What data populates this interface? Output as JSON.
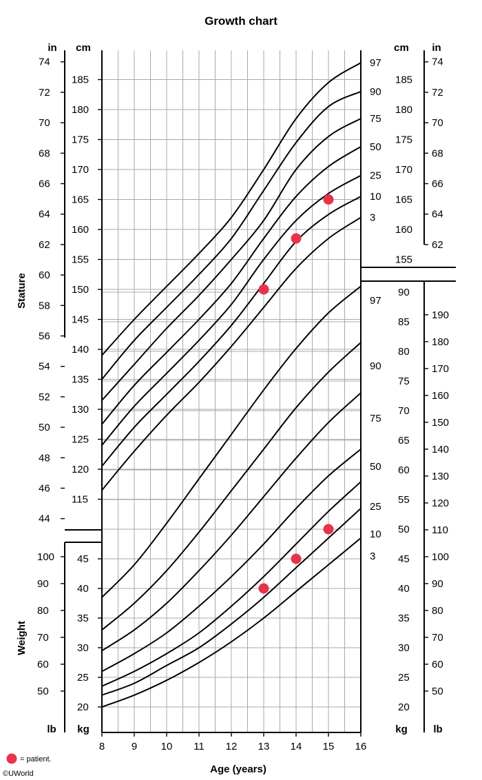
{
  "chart_data": {
    "type": "line",
    "title": "Growth chart",
    "xlabel": "Age (years)",
    "x_ticks": [
      8,
      9,
      10,
      11,
      12,
      13,
      14,
      15,
      16
    ],
    "xlim": [
      8,
      16
    ],
    "stature": {
      "axis_label": "Stature",
      "unit_in": "in",
      "unit_cm": "cm",
      "ylim_cm": [
        112,
        189
      ],
      "left_cm_ticks": [
        115,
        120,
        125,
        130,
        135,
        140,
        145,
        150,
        155,
        160,
        165,
        170,
        175,
        180,
        185
      ],
      "right_cm_ticks": [
        155,
        160,
        165,
        170,
        175,
        180,
        185
      ],
      "left_in_ticks": [
        44,
        46,
        48,
        50,
        52,
        54,
        56,
        58,
        60,
        62,
        64,
        66,
        68,
        70,
        72,
        74
      ],
      "right_in_ticks": [
        62,
        64,
        66,
        68,
        70,
        72,
        74
      ],
      "series": [
        {
          "name": "97",
          "x": [
            8,
            9,
            10,
            11,
            12,
            13,
            14,
            15,
            16
          ],
          "y": [
            139,
            145,
            150.5,
            156,
            162,
            170,
            178.5,
            184.5,
            187.8
          ]
        },
        {
          "name": "90",
          "x": [
            8,
            9,
            10,
            11,
            12,
            13,
            14,
            15,
            16
          ],
          "y": [
            135,
            141.5,
            147,
            152.5,
            158.5,
            166.5,
            174.5,
            180.5,
            183
          ]
        },
        {
          "name": "75",
          "x": [
            8,
            9,
            10,
            11,
            12,
            13,
            14,
            15,
            16
          ],
          "y": [
            131.5,
            137.5,
            143.5,
            149,
            155,
            161.5,
            170,
            175.5,
            178.5
          ]
        },
        {
          "name": "50",
          "x": [
            8,
            9,
            10,
            11,
            12,
            13,
            14,
            15,
            16
          ],
          "y": [
            127.5,
            134,
            139.5,
            145,
            151,
            158.5,
            165.5,
            170.5,
            173.8
          ]
        },
        {
          "name": "25",
          "x": [
            8,
            9,
            10,
            11,
            12,
            13,
            14,
            15,
            16
          ],
          "y": [
            124,
            130.5,
            136,
            141.5,
            147.5,
            155,
            161.5,
            166,
            169
          ]
        },
        {
          "name": "10",
          "x": [
            8,
            9,
            10,
            11,
            12,
            13,
            14,
            15,
            16
          ],
          "y": [
            120.5,
            127,
            132.5,
            138,
            144,
            151,
            158,
            162.5,
            165.5
          ]
        },
        {
          "name": "3",
          "x": [
            8,
            9,
            10,
            11,
            12,
            13,
            14,
            15,
            16
          ],
          "y": [
            116.5,
            123,
            129,
            134.5,
            140.5,
            147,
            153.5,
            158.5,
            162
          ]
        }
      ],
      "patient": {
        "x": [
          13,
          14,
          15
        ],
        "y": [
          150,
          158.5,
          165
        ]
      }
    },
    "weight": {
      "axis_label": "Weight",
      "unit_lb": "lb",
      "unit_kg": "kg",
      "ylim_kg": [
        18.5,
        93
      ],
      "left_kg_ticks": [
        20,
        25,
        30,
        35,
        40,
        45
      ],
      "right_kg_ticks": [
        20,
        25,
        30,
        35,
        40,
        45,
        50,
        55,
        60,
        65,
        70,
        75,
        80,
        85,
        90
      ],
      "left_lb_ticks": [
        50,
        60,
        70,
        80,
        90,
        100
      ],
      "right_lb_ticks": [
        50,
        60,
        70,
        80,
        90,
        100,
        110,
        120,
        130,
        140,
        150,
        160,
        170,
        180,
        190
      ],
      "series": [
        {
          "name": "97",
          "x": [
            8,
            9,
            10,
            11,
            12,
            13,
            14,
            15,
            16
          ],
          "y": [
            38.5,
            44,
            51,
            58.5,
            66,
            73.5,
            80.5,
            86.5,
            91
          ]
        },
        {
          "name": "90",
          "x": [
            8,
            9,
            10,
            11,
            12,
            13,
            14,
            15,
            16
          ],
          "y": [
            33,
            37.5,
            43,
            49.5,
            56.5,
            63.5,
            70.5,
            76.5,
            81.5
          ]
        },
        {
          "name": "75",
          "x": [
            8,
            9,
            10,
            11,
            12,
            13,
            14,
            15,
            16
          ],
          "y": [
            29.5,
            33,
            37.5,
            43,
            49,
            55.5,
            62,
            68,
            73
          ]
        },
        {
          "name": "50",
          "x": [
            8,
            9,
            10,
            11,
            12,
            13,
            14,
            15,
            16
          ],
          "y": [
            26,
            29,
            32.5,
            37,
            42,
            47.5,
            53.5,
            59,
            63.5
          ]
        },
        {
          "name": "25",
          "x": [
            8,
            9,
            10,
            11,
            12,
            13,
            14,
            15,
            16
          ],
          "y": [
            23.5,
            26,
            29,
            32.5,
            37,
            42,
            47.5,
            53,
            58
          ]
        },
        {
          "name": "10",
          "x": [
            8,
            9,
            10,
            11,
            12,
            13,
            14,
            15,
            16
          ],
          "y": [
            22,
            24,
            27,
            30,
            34,
            38.5,
            43.5,
            48.5,
            53.5
          ]
        },
        {
          "name": "3",
          "x": [
            8,
            9,
            10,
            11,
            12,
            13,
            14,
            15,
            16
          ],
          "y": [
            20,
            22,
            24.5,
            27.5,
            31,
            35,
            39.5,
            44,
            48.5
          ]
        }
      ],
      "patient": {
        "x": [
          13,
          14,
          15
        ],
        "y": [
          40,
          45,
          50
        ]
      }
    },
    "legend": {
      "text": "= patient.",
      "position": "bottom-left"
    },
    "colors": {
      "patient": "#e8334a",
      "curve": "#000000",
      "grid": "#a8a8a8"
    },
    "grid": true
  },
  "footer": {
    "copyright": "©UWorld"
  }
}
